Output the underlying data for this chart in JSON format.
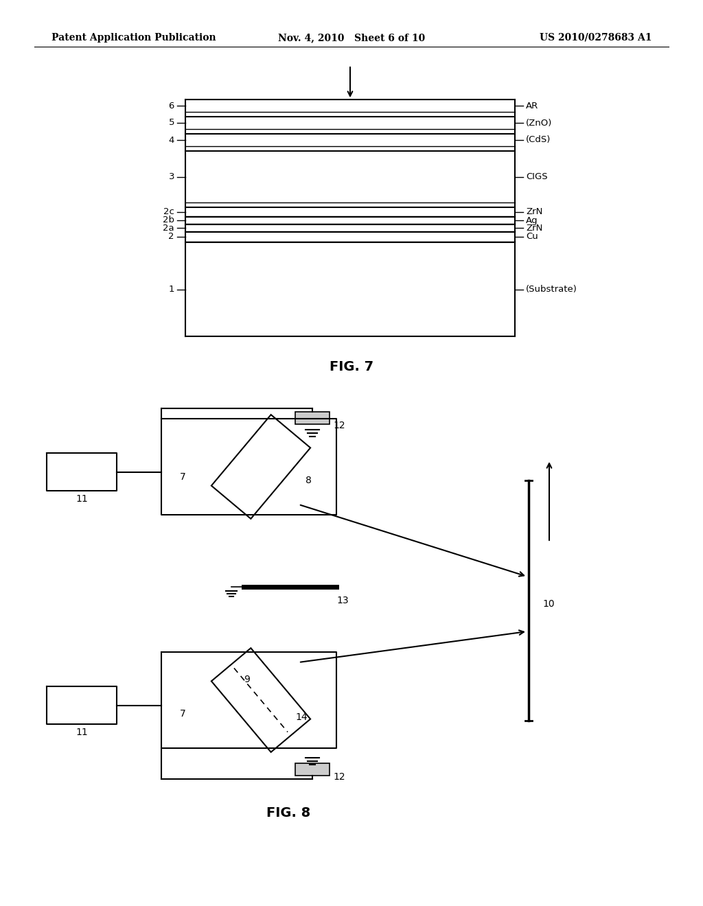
{
  "bg_color": "#ffffff",
  "text_color": "#000000",
  "header_left": "Patent Application Publication",
  "header_center": "Nov. 4, 2010   Sheet 6 of 10",
  "header_right": "US 2010/0278683 A1",
  "fig7_title": "FIG. 7",
  "fig8_title": "FIG. 8"
}
